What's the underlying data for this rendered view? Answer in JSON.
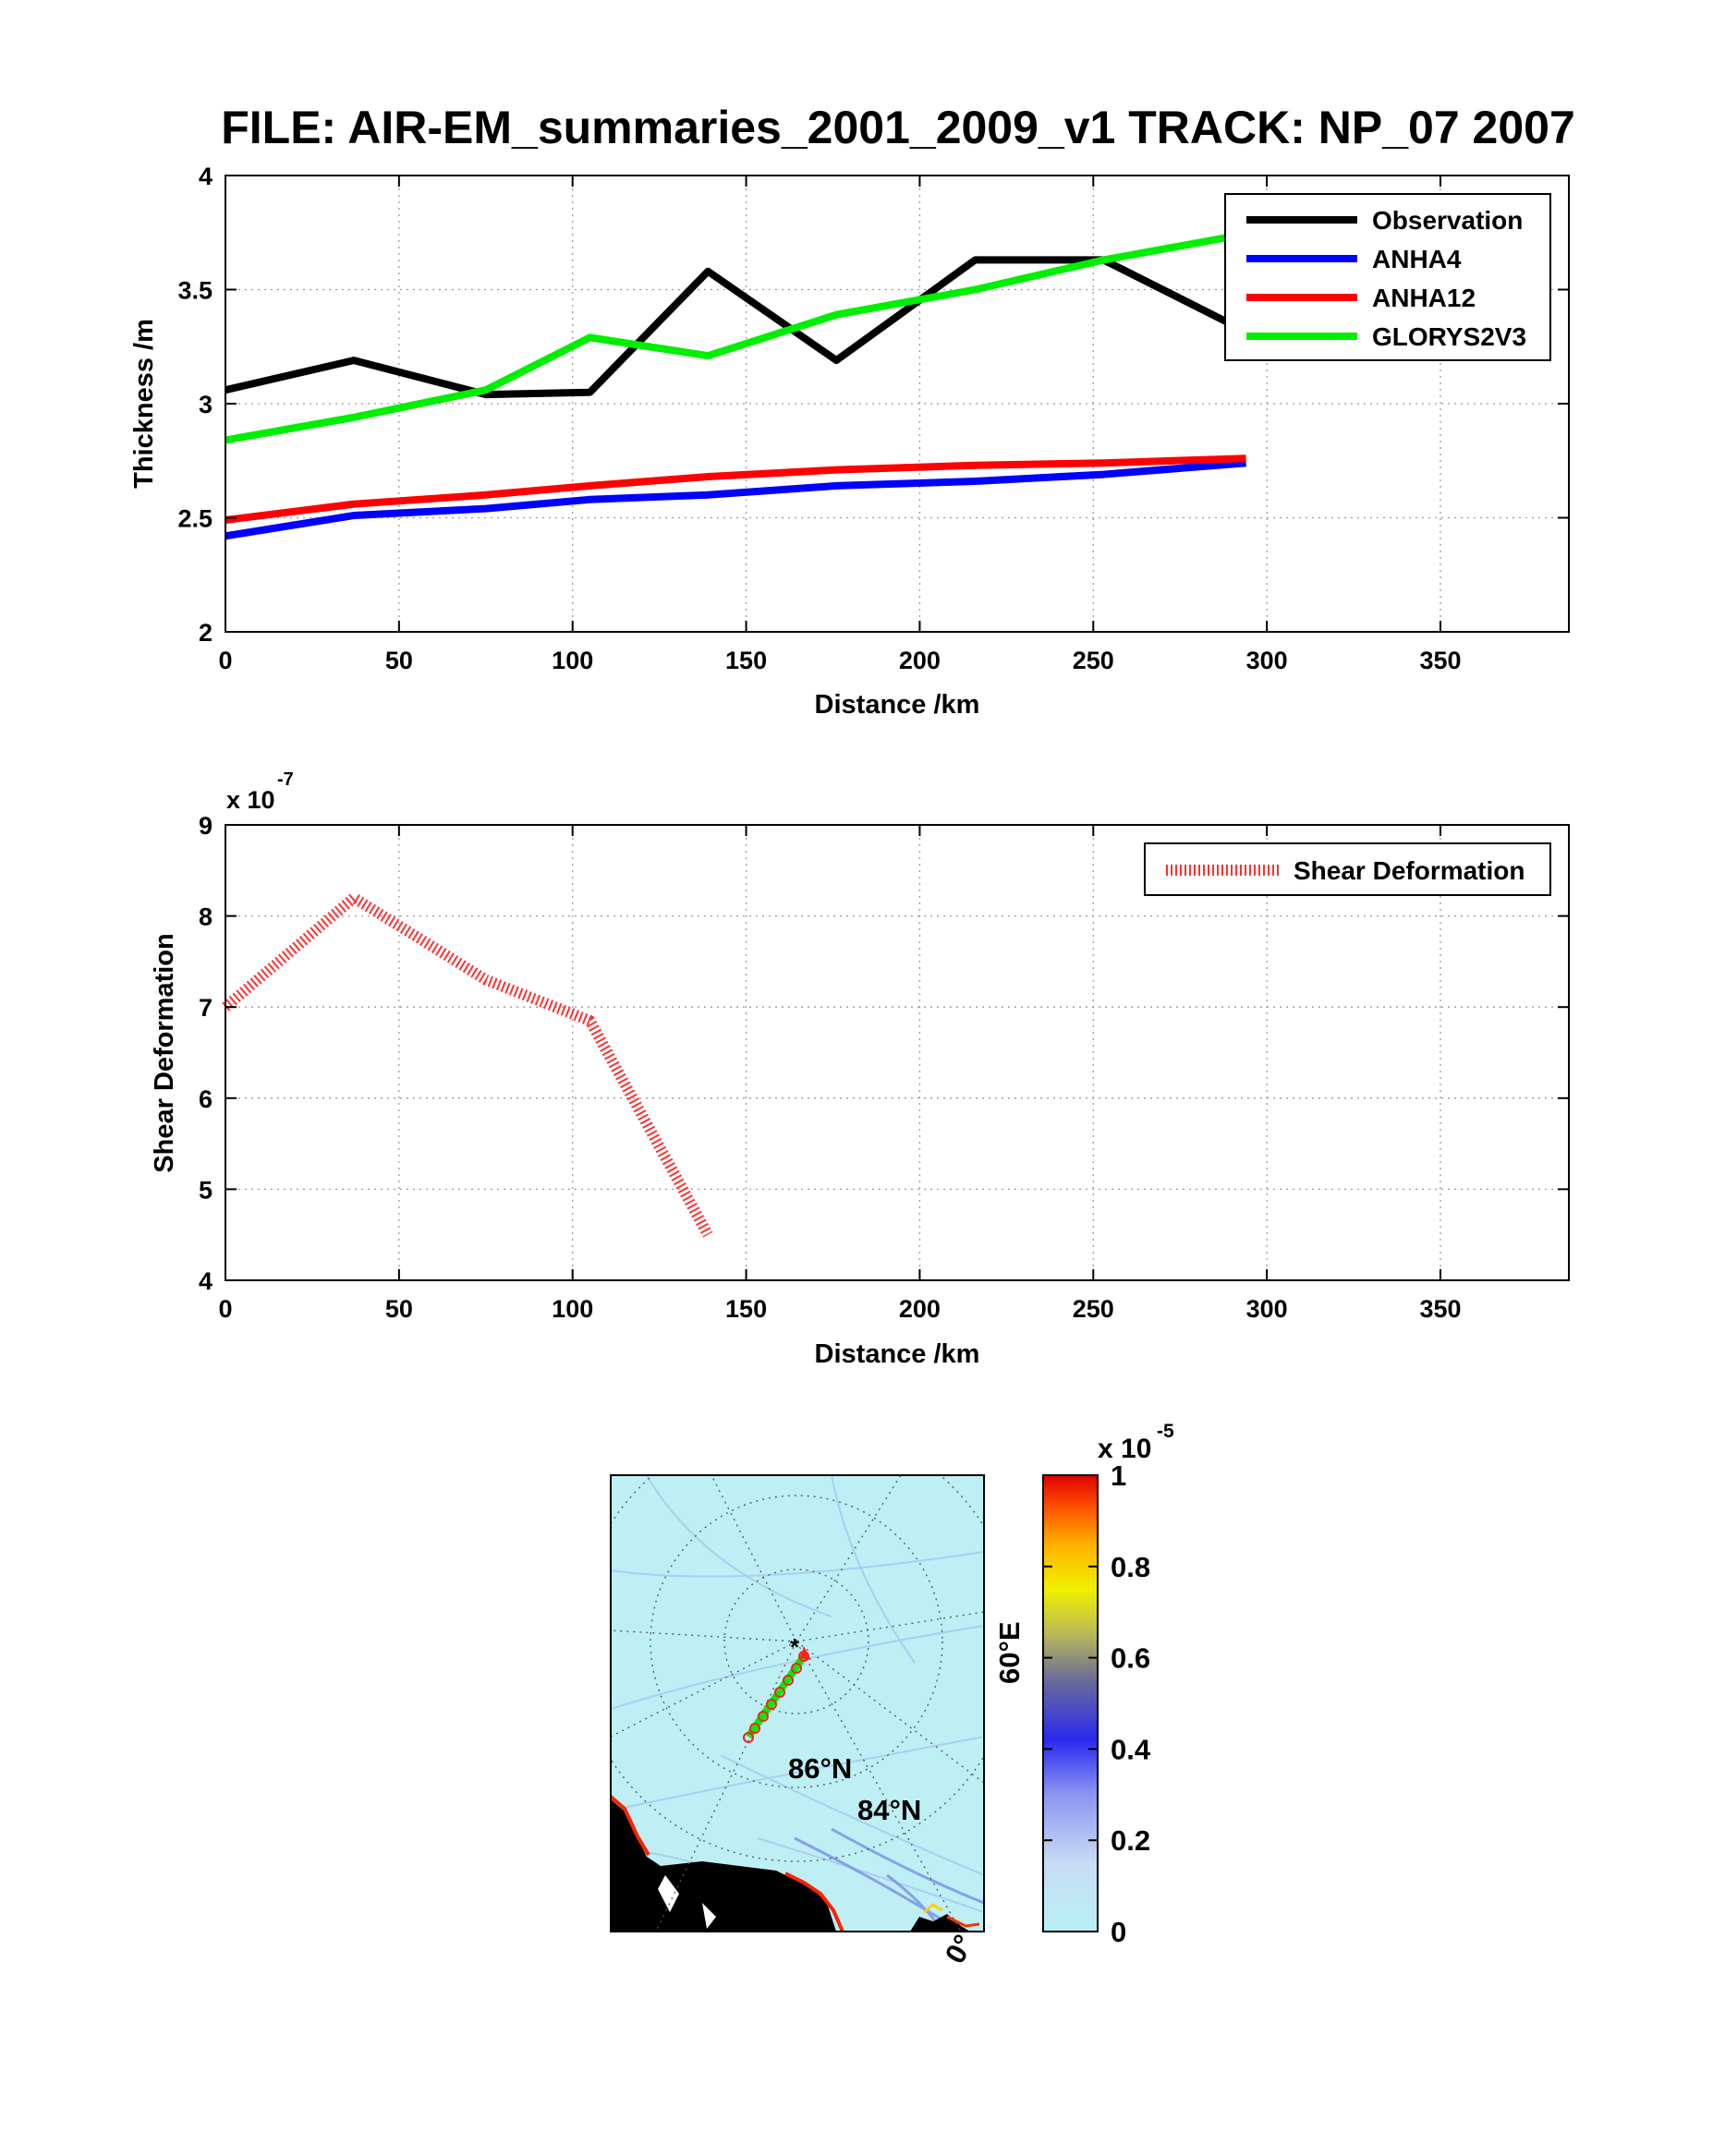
{
  "title": "FILE: AIR-EM_summaries_2001_2009_v1 TRACK: NP_07 2007",
  "chart_data": [
    {
      "type": "line",
      "xlabel": "Distance /km",
      "ylabel": "Thickness /m",
      "xlim": [
        0,
        387
      ],
      "ylim": [
        2,
        4
      ],
      "xticks": [
        "0",
        "50",
        "100",
        "150",
        "200",
        "250",
        "300",
        "350"
      ],
      "yticks": [
        "2",
        "2.5",
        "3",
        "3.5",
        "4"
      ],
      "grid": true,
      "legend_position": "top-right",
      "series": [
        {
          "name": "Observation",
          "color": "#000000",
          "x": [
            0,
            37,
            75,
            105,
            139,
            176,
            216,
            253,
            300
          ],
          "y": [
            3.06,
            3.19,
            3.04,
            3.05,
            3.58,
            3.19,
            3.63,
            3.63,
            3.27
          ]
        },
        {
          "name": "ANHA4",
          "color": "#0000ff",
          "x": [
            0,
            37,
            75,
            105,
            139,
            176,
            216,
            253,
            294
          ],
          "y": [
            2.42,
            2.51,
            2.54,
            2.58,
            2.6,
            2.64,
            2.66,
            2.69,
            2.74
          ]
        },
        {
          "name": "ANHA12",
          "color": "#ff0000",
          "x": [
            0,
            37,
            75,
            105,
            139,
            176,
            216,
            253,
            294
          ],
          "y": [
            2.49,
            2.56,
            2.6,
            2.64,
            2.68,
            2.71,
            2.73,
            2.74,
            2.76
          ]
        },
        {
          "name": "GLORYS2V3",
          "color": "#00ee00",
          "x": [
            0,
            37,
            75,
            105,
            139,
            176,
            216,
            253,
            300
          ],
          "y": [
            2.84,
            2.94,
            3.06,
            3.29,
            3.21,
            3.39,
            3.5,
            3.63,
            3.76
          ]
        }
      ]
    },
    {
      "type": "line",
      "xlabel": "Distance /km",
      "ylabel": "Shear Deformation",
      "exponent_label": "x 10",
      "exponent_power": "-7",
      "xlim": [
        0,
        387
      ],
      "ylim": [
        4,
        9
      ],
      "xticks": [
        "0",
        "50",
        "100",
        "150",
        "200",
        "250",
        "300",
        "350"
      ],
      "yticks": [
        "4",
        "5",
        "6",
        "7",
        "8",
        "9"
      ],
      "grid": true,
      "legend_position": "top-right",
      "series": [
        {
          "name": "Shear Deformation",
          "color": "#ff3030",
          "style": "hatched",
          "x": [
            0,
            37,
            75,
            105,
            139
          ],
          "y": [
            7.0,
            8.2,
            7.3,
            6.85,
            4.5
          ]
        }
      ]
    },
    {
      "type": "heatmap",
      "colorbar": {
        "exponent_label": "x 10",
        "exponent_power": "-5",
        "ticks": [
          "0",
          "0.2",
          "0.4",
          "0.6",
          "0.8",
          "1"
        ],
        "range": [
          0,
          1
        ],
        "colors": [
          "#b8f0f5",
          "#c8dcf5",
          "#7a86f0",
          "#2a2af0",
          "#6a6a9a",
          "#b8b85a",
          "#f0f000",
          "#ffb000",
          "#ff5000",
          "#e00000"
        ]
      },
      "map_labels": {
        "lat_86": "86°N",
        "lat_84": "84°N",
        "lon_60": "60°E",
        "lon_0": "0°"
      }
    }
  ]
}
